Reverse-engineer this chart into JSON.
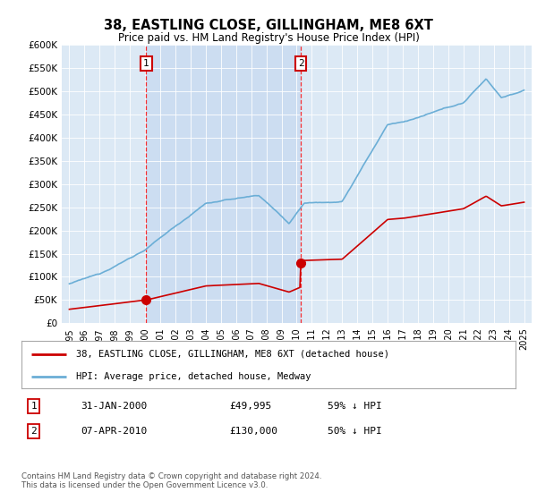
{
  "title": "38, EASTLING CLOSE, GILLINGHAM, ME8 6XT",
  "subtitle": "Price paid vs. HM Land Registry's House Price Index (HPI)",
  "bg_color": "#dce9f5",
  "ylim": [
    0,
    600000
  ],
  "yticks": [
    0,
    50000,
    100000,
    150000,
    200000,
    250000,
    300000,
    350000,
    400000,
    450000,
    500000,
    550000,
    600000
  ],
  "ytick_labels": [
    "£0",
    "£50K",
    "£100K",
    "£150K",
    "£200K",
    "£250K",
    "£300K",
    "£350K",
    "£400K",
    "£450K",
    "£500K",
    "£550K",
    "£600K"
  ],
  "sale1_year": 2000.08,
  "sale1_price": 49995,
  "sale2_year": 2010.27,
  "sale2_price": 130000,
  "hpi_color": "#6baed6",
  "price_color": "#cc0000",
  "shade_color": "#c6d9f0",
  "legend_line1": "38, EASTLING CLOSE, GILLINGHAM, ME8 6XT (detached house)",
  "legend_line2": "HPI: Average price, detached house, Medway",
  "table_row1_date": "31-JAN-2000",
  "table_row1_price": "£49,995",
  "table_row1_hpi": "59% ↓ HPI",
  "table_row2_date": "07-APR-2010",
  "table_row2_price": "£130,000",
  "table_row2_hpi": "50% ↓ HPI",
  "footer": "Contains HM Land Registry data © Crown copyright and database right 2024.\nThis data is licensed under the Open Government Licence v3.0.",
  "xmin": 1994.5,
  "xmax": 2025.5
}
